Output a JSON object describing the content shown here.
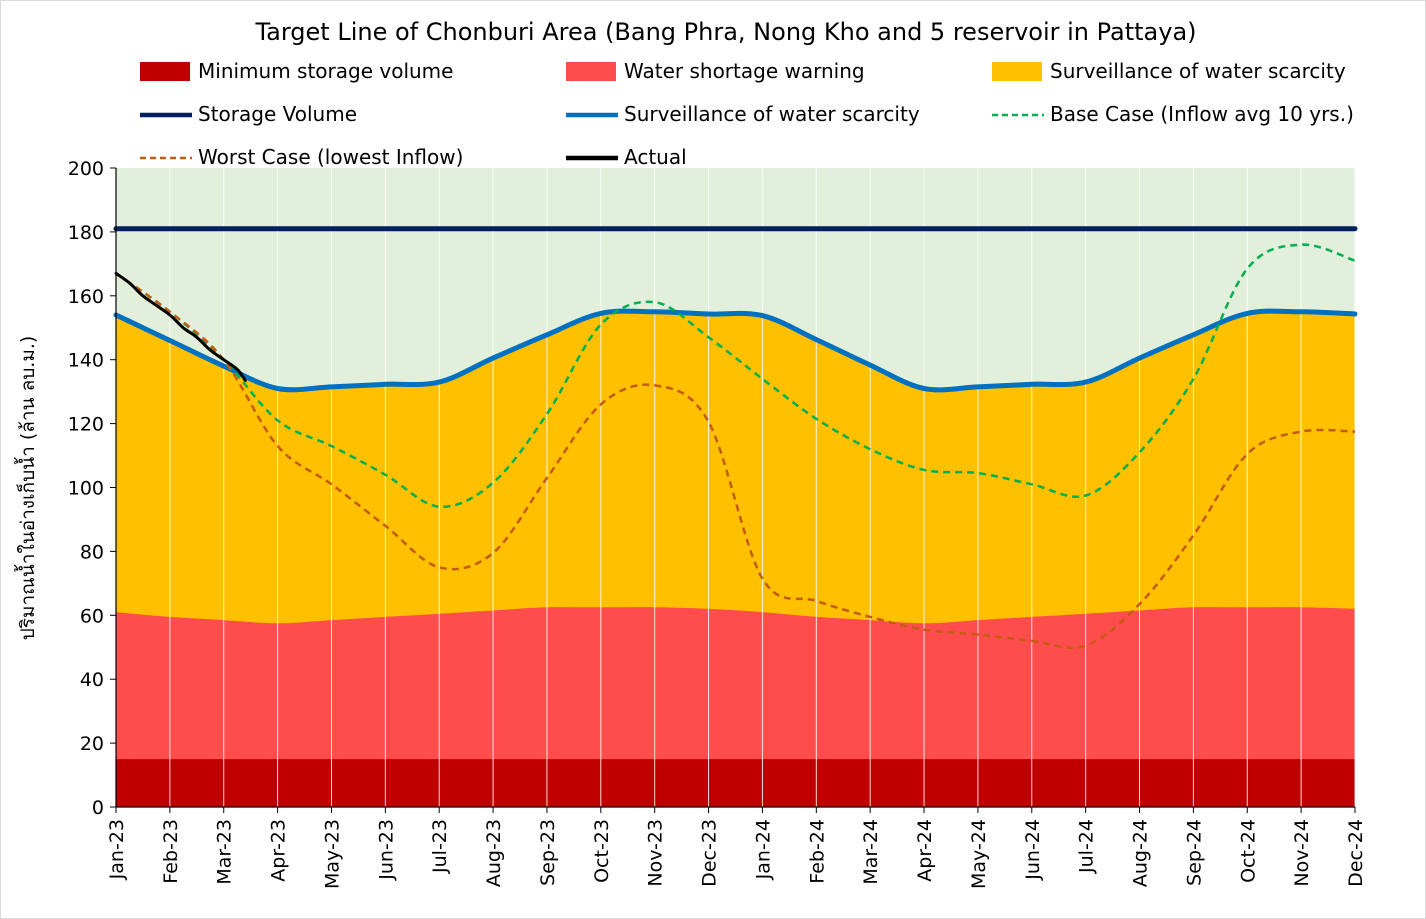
{
  "chart_data": {
    "type": "area",
    "title": "Target Line of Chonburi Area (Bang Phra, Nong Kho and 5 reservoir in Pattaya)",
    "xlabel": "",
    "ylabel": "ปริมาณน้ำในอ่างเก็บน้ำ (ล้าน ลบ.ม.)",
    "ylim": [
      0,
      200
    ],
    "yticks": [
      0,
      20,
      40,
      60,
      80,
      100,
      120,
      140,
      160,
      180,
      200
    ],
    "grid": "vertical",
    "legend_position": "top",
    "categories": [
      "Jan-23",
      "Feb-23",
      "Mar-23",
      "Apr-23",
      "May-23",
      "Jun-23",
      "Jul-23",
      "Aug-23",
      "Sep-23",
      "Oct-23",
      "Nov-23",
      "Dec-23",
      "Jan-24",
      "Feb-24",
      "Mar-24",
      "Apr-24",
      "May-24",
      "Jun-24",
      "Jul-24",
      "Aug-24",
      "Sep-24",
      "Oct-24",
      "Nov-24",
      "Dec-24"
    ],
    "background_band": {
      "from": 0,
      "to": 200,
      "color": "#e2efda"
    },
    "areas": [
      {
        "name": "Surveillance of water scarcity",
        "color": "#ffc000",
        "values": [
          154,
          146,
          138,
          131,
          131.5,
          132.3,
          133,
          140.5,
          147.8,
          154.5,
          155,
          154.3,
          153.8,
          146.3,
          138.3,
          131,
          131.5,
          132.3,
          133,
          140.5,
          147.8,
          154.5,
          155,
          154.3
        ]
      },
      {
        "name": "Water shortage warning",
        "color": "#ff4d4d",
        "values": [
          61,
          59.5,
          58.5,
          57.5,
          58.5,
          59.5,
          60.5,
          61.5,
          62.5,
          62.5,
          62.5,
          62,
          61,
          59.5,
          58.5,
          57.5,
          58.5,
          59.5,
          60.5,
          61.5,
          62.5,
          62.5,
          62.5,
          62
        ]
      },
      {
        "name": "Minimum storage volume",
        "color": "#c00000",
        "values": [
          15,
          15,
          15,
          15,
          15,
          15,
          15,
          15,
          15,
          15,
          15,
          15,
          15,
          15,
          15,
          15,
          15,
          15,
          15,
          15,
          15,
          15,
          15,
          15
        ]
      }
    ],
    "series": [
      {
        "name": "Storage Volume",
        "color": "#002060",
        "style": "solid",
        "width": 5,
        "values": [
          181,
          181,
          181,
          181,
          181,
          181,
          181,
          181,
          181,
          181,
          181,
          181,
          181,
          181,
          181,
          181,
          181,
          181,
          181,
          181,
          181,
          181,
          181,
          181
        ]
      },
      {
        "name": "Surveillance of water scarcity",
        "color": "#0070c0",
        "style": "solid",
        "width": 5,
        "values": [
          154,
          146,
          138,
          131,
          131.5,
          132.3,
          133,
          140.5,
          147.8,
          154.5,
          155,
          154.3,
          153.8,
          146.3,
          138.3,
          131,
          131.5,
          132.3,
          133,
          140.5,
          147.8,
          154.5,
          155,
          154.3
        ]
      },
      {
        "name": "Base Case (Inflow avg 10 yrs.)",
        "color": "#00b050",
        "style": "dashed",
        "width": 2.5,
        "values": [
          167,
          155,
          140,
          121,
          113,
          104,
          94,
          101.5,
          123,
          151,
          158,
          147,
          134,
          121.5,
          112,
          105.5,
          104.5,
          101,
          97.5,
          111,
          134,
          168.5,
          176,
          171
        ]
      },
      {
        "name": "Worst Case (lowest Inflow)",
        "color": "#c55a11",
        "style": "dashed",
        "width": 2.5,
        "values": [
          167,
          155,
          140,
          113,
          101,
          88,
          75,
          79.5,
          103,
          126,
          132,
          120.5,
          71.5,
          64.5,
          59.5,
          55.5,
          54,
          52,
          50.5,
          63.5,
          85,
          110.5,
          117.5,
          117.5
        ]
      },
      {
        "name": "Actual",
        "color": "#000000",
        "style": "solid",
        "width": 3,
        "x": [
          0,
          0.25,
          0.5,
          0.75,
          1,
          1.25,
          1.5,
          1.75,
          2,
          2.25,
          2.4
        ],
        "values": [
          167,
          164,
          160,
          157,
          154,
          150,
          147,
          143,
          140,
          137,
          133.5
        ]
      }
    ],
    "legend": [
      {
        "label": "Minimum storage volume",
        "kind": "box",
        "color": "#c00000"
      },
      {
        "label": "Water shortage warning",
        "kind": "box",
        "color": "#ff4d4d"
      },
      {
        "label": "Surveillance of water scarcity",
        "kind": "box",
        "color": "#ffc000"
      },
      {
        "label": "Storage Volume",
        "kind": "line",
        "color": "#002060",
        "style": "solid"
      },
      {
        "label": "Surveillance of water scarcity",
        "kind": "line",
        "color": "#0070c0",
        "style": "solid"
      },
      {
        "label": "Base Case (Inflow avg 10 yrs.)",
        "kind": "line",
        "color": "#00b050",
        "style": "dashed"
      },
      {
        "label": "Worst Case (lowest Inflow)",
        "kind": "line",
        "color": "#c55a11",
        "style": "dashed"
      },
      {
        "label": "Actual",
        "kind": "line",
        "color": "#000000",
        "style": "solid"
      }
    ]
  }
}
